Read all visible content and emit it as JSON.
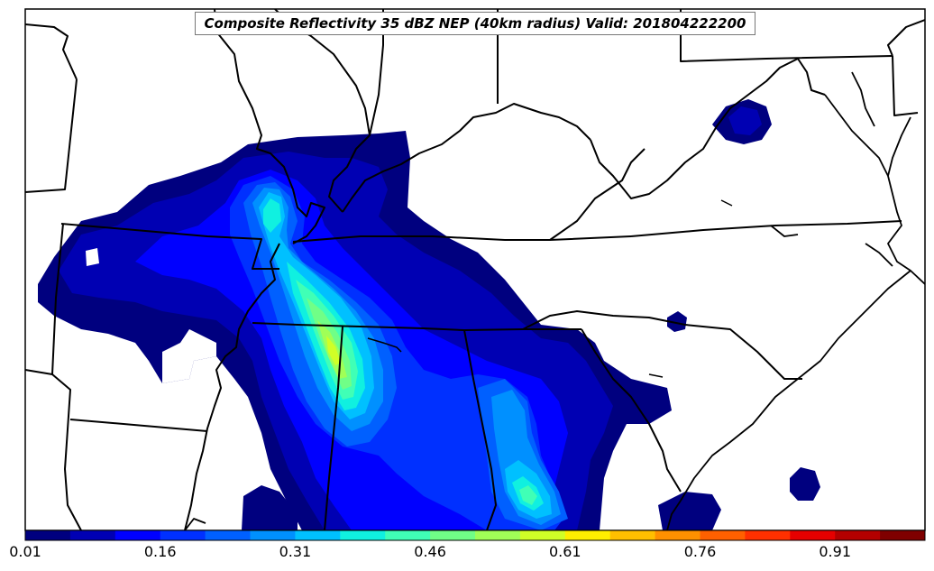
{
  "map": {
    "title": "Composite Reflectivity 35 dBZ NEP (40km radius) Valid: 201804222200",
    "field": "Composite Reflectivity 35 dBZ NEP",
    "radius": "40km radius",
    "valid_time": "201804222200"
  },
  "colorbar": {
    "tick_labels": [
      "0.01",
      "0.16",
      "0.31",
      "0.46",
      "0.61",
      "0.76",
      "0.91"
    ],
    "tick_values": [
      0.01,
      0.16,
      0.31,
      0.46,
      0.61,
      0.76,
      0.91
    ],
    "range": [
      0.01,
      1.01
    ],
    "colors": [
      "#00007f",
      "#0000b3",
      "#0000ff",
      "#0030ff",
      "#0060ff",
      "#0090ff",
      "#00c0ff",
      "#10f0e0",
      "#40ffb6",
      "#70ff87",
      "#a0ff57",
      "#d0ff27",
      "#ffee00",
      "#ffbf00",
      "#ff9000",
      "#ff6000",
      "#ff3000",
      "#e60000",
      "#b30000",
      "#7f0000"
    ]
  },
  "colors": {
    "land": "#ffffff",
    "border": "#000000"
  }
}
